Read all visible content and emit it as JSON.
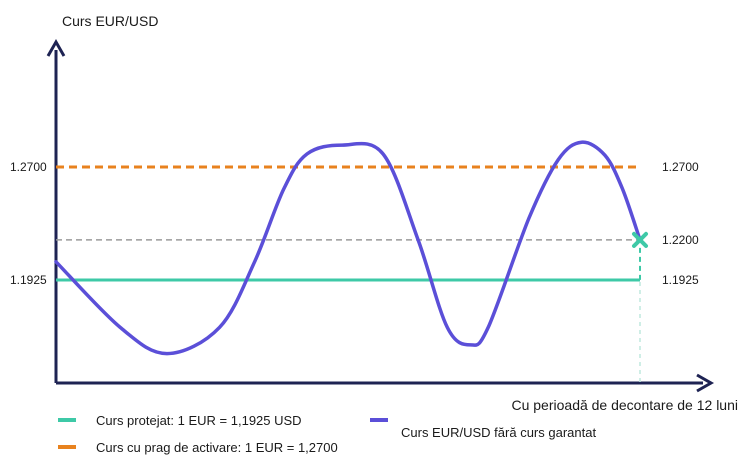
{
  "chart_data": {
    "type": "line",
    "ylabel": "Curs EUR/USD",
    "xlabel": "Cu perioadă de decontare de 12 luni",
    "y_ticks_left": [
      "1.2700",
      "1.1925"
    ],
    "y_ticks_right": [
      "1.2700",
      "1.2200",
      "1.1925"
    ],
    "reference_lines": [
      {
        "value": 1.27,
        "style": "dashed",
        "color": "#e8821e"
      },
      {
        "value": 1.22,
        "style": "dashed",
        "color": "#9a9a9a"
      },
      {
        "value": 1.1925,
        "style": "solid",
        "color": "#3ec9a7"
      }
    ],
    "series": [
      {
        "name": "Curs EUR/USD fără curs garantat",
        "color": "#5b4fd8",
        "x": [
          0,
          0.11,
          0.19,
          0.28,
          0.34,
          0.39,
          0.43,
          0.49,
          0.56,
          0.62,
          0.67,
          0.71,
          0.74,
          0.81,
          0.86,
          0.9,
          0.94,
          0.97,
          1
        ],
        "values": [
          1.205,
          1.16,
          1.142,
          1.16,
          1.205,
          1.255,
          1.279,
          1.285,
          1.279,
          1.22,
          1.16,
          1.148,
          1.16,
          1.235,
          1.275,
          1.287,
          1.278,
          1.255,
          1.22
        ]
      }
    ],
    "end_marker": {
      "x": 1,
      "value": 1.22,
      "label": "1.2200"
    },
    "legend": [
      {
        "label": "Curs protejat: 1 EUR = 1,1925 USD",
        "color": "#3ec9a7"
      },
      {
        "label": "Curs EUR/USD fără curs garantat",
        "color": "#5b4fd8"
      },
      {
        "label": "Curs cu prag de activare: 1 EUR = 1,2700",
        "color": "#e8821e"
      }
    ],
    "colors": {
      "axis": "#1e2353",
      "marker": "#3ec9a7",
      "text": "#1a1a1a"
    }
  }
}
